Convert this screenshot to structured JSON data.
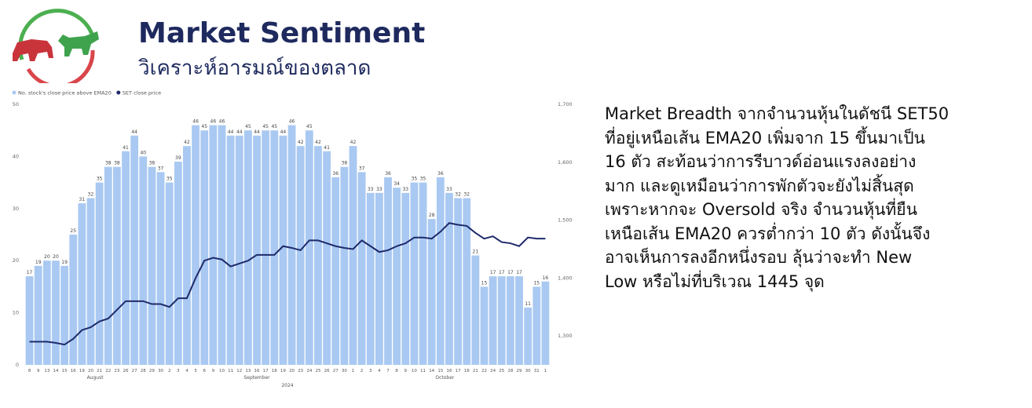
{
  "header": {
    "title": "Market Sentiment",
    "subtitle": "วิเคราะห์อารมณ์ของตลาด"
  },
  "chart_data": {
    "type": "bar-line",
    "series": [
      {
        "name": "No. stock's close price above EMA20",
        "color": "#a9c9f2",
        "values": [
          17,
          19,
          20,
          20,
          19,
          25,
          31,
          32,
          35,
          38,
          38,
          41,
          44,
          40,
          38,
          37,
          35,
          39,
          42,
          46,
          45,
          46,
          46,
          44,
          44,
          45,
          44,
          45,
          45,
          44,
          46,
          42,
          45,
          42,
          41,
          36,
          38,
          42,
          37,
          33,
          33,
          36,
          34,
          33,
          35,
          35,
          28,
          36,
          33,
          32,
          32,
          21,
          15,
          17,
          17,
          17,
          17,
          11,
          15,
          16
        ]
      },
      {
        "name": "SET close price",
        "color": "#1f2a6b",
        "axis": "y2",
        "values": [
          1290,
          1290,
          1290,
          1288,
          1285,
          1295,
          1310,
          1315,
          1325,
          1330,
          1345,
          1360,
          1360,
          1360,
          1355,
          1355,
          1350,
          1365,
          1365,
          1400,
          1430,
          1435,
          1432,
          1420,
          1425,
          1430,
          1440,
          1440,
          1440,
          1455,
          1452,
          1448,
          1465,
          1465,
          1460,
          1455,
          1452,
          1450,
          1465,
          1455,
          1445,
          1448,
          1455,
          1460,
          1470,
          1470,
          1468,
          1480,
          1495,
          1492,
          1490,
          1478,
          1468,
          1472,
          1462,
          1460,
          1455,
          1470,
          1468,
          1468
        ]
      }
    ],
    "categories": [
      "8",
      "9",
      "13",
      "14",
      "15",
      "16",
      "19",
      "20",
      "21",
      "22",
      "23",
      "26",
      "27",
      "28",
      "29",
      "30",
      "2",
      "3",
      "4",
      "5",
      "6",
      "9",
      "10",
      "11",
      "12",
      "13",
      "16",
      "17",
      "18",
      "19",
      "20",
      "23",
      "24",
      "25",
      "26",
      "27",
      "30",
      "1",
      "2",
      "3",
      "4",
      "7",
      "8",
      "9",
      "10",
      "11",
      "14",
      "15",
      "16",
      "17",
      "18",
      "21",
      "22",
      "24",
      "25",
      "28",
      "29",
      "30",
      "31",
      "1"
    ],
    "x_groups": [
      "August",
      "September",
      "October"
    ],
    "x_label": "2024",
    "ylim": [
      0,
      50
    ],
    "yticks": [
      0,
      10,
      20,
      30,
      40,
      50
    ],
    "y2lim": [
      1250,
      1700
    ],
    "y2ticks": [
      {
        "value": 1300,
        "label": "1,300"
      },
      {
        "value": 1400,
        "label": "1,400"
      },
      {
        "value": 1500,
        "label": "1,500"
      },
      {
        "value": 1600,
        "label": "1,600"
      },
      {
        "value": 1700,
        "label": "1,700"
      }
    ],
    "legend": "top-left"
  },
  "paragraph": [
    "Market Breadth จากจำนวนหุ้นในดัชนี SET50",
    "ที่อยู่เหนือเส้น EMA20 เพิ่มจาก 15 ขึ้นมาเป็น",
    "16 ตัว สะท้อนว่าการรีบาวด์อ่อนแรงลงอย่าง",
    "มาก และดูเหมือนว่าการพักตัวจะยังไม่สิ้นสุด",
    "เพราะหากจะ Oversold จริง จำนวนหุ้นที่ยืน",
    "เหนือเส้น EMA20 ควรต่ำกว่า 10 ตัว ดังนั้นจึง",
    "อาจเห็นการลงอีกหนึ่งรอบ ลุ้นว่าจะทำ New",
    "Low หรือไม่ที่บริเวณ 1445 จุด"
  ]
}
